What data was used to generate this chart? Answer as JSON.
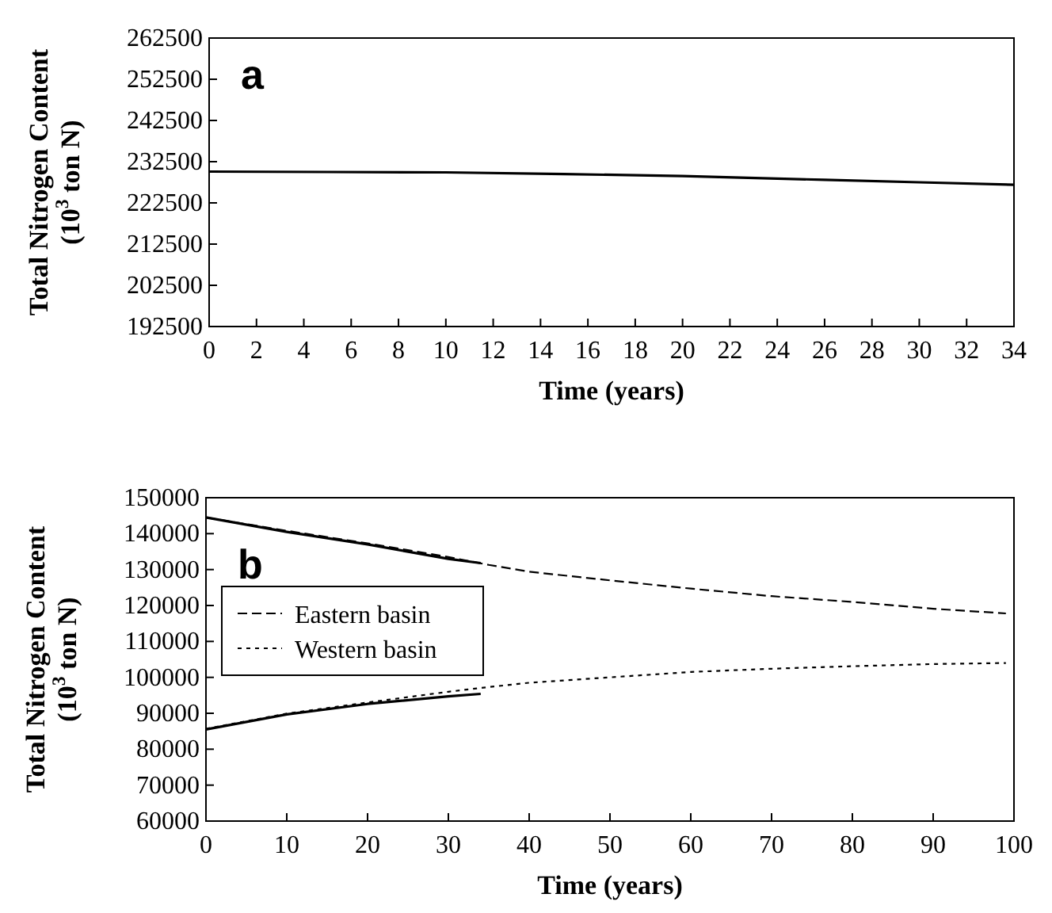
{
  "chart_data": [
    {
      "type": "line",
      "xlabel": "Time (years)",
      "ylabel": "Total Nitrogen Content (10$^{3}$ ton N)",
      "annotations": [
        "a"
      ],
      "xlim": [
        0,
        34
      ],
      "xticks": [
        0,
        2,
        4,
        6,
        8,
        10,
        12,
        14,
        16,
        18,
        20,
        22,
        24,
        26,
        28,
        30,
        32,
        34
      ],
      "ylim": [
        192500,
        262500
      ],
      "yticks": [
        192500,
        202500,
        212500,
        222500,
        232500,
        242500,
        252500,
        262500
      ],
      "grid": false,
      "legend": false,
      "line_style": "solid",
      "series": [
        {
          "color": "#000000",
          "x": [
            0,
            5,
            10,
            15,
            20,
            26,
            30,
            34
          ],
          "values": [
            230100,
            230000,
            229900,
            229500,
            229000,
            228100,
            227500,
            226900
          ]
        }
      ]
    },
    {
      "type": "line",
      "xlabel": "Time (years)",
      "ylabel": "Total Nitrogen Content (10$^{3}$ ton N)",
      "annotations": [
        "b"
      ],
      "xlim": [
        0,
        100
      ],
      "xticks": [
        0,
        10,
        20,
        30,
        40,
        50,
        60,
        70,
        80,
        90,
        100
      ],
      "ylim": [
        60000,
        150000
      ],
      "yticks": [
        60000,
        70000,
        80000,
        90000,
        100000,
        110000,
        120000,
        130000,
        140000,
        150000
      ],
      "grid": false,
      "legend": "left",
      "series": [
        {
          "name": "Eastern basin",
          "color": "#000000",
          "line_style": "dashed",
          "x": [
            0,
            10,
            20,
            30,
            35,
            40,
            50,
            60,
            70,
            80,
            90,
            99
          ],
          "values": [
            144500,
            140800,
            137300,
            133500,
            131300,
            129400,
            127000,
            124700,
            122600,
            121000,
            119100,
            117800
          ]
        },
        {
          "name": "Western basin",
          "color": "#000000",
          "line_style": "dotted",
          "x": [
            0,
            10,
            20,
            30,
            35,
            40,
            50,
            60,
            70,
            80,
            90,
            99
          ],
          "values": [
            85700,
            89900,
            93000,
            96000,
            97300,
            98500,
            100000,
            101500,
            102400,
            103100,
            103700,
            104000
          ]
        },
        {
          "color": "#000000",
          "line_style": "solid",
          "x": [
            0,
            10,
            20,
            30,
            34
          ],
          "values": [
            144500,
            140500,
            137000,
            133000,
            131800
          ]
        },
        {
          "color": "#000000",
          "line_style": "solid",
          "x": [
            0,
            10,
            20,
            30,
            34
          ],
          "values": [
            85500,
            89700,
            92600,
            94700,
            95400
          ]
        }
      ]
    }
  ]
}
